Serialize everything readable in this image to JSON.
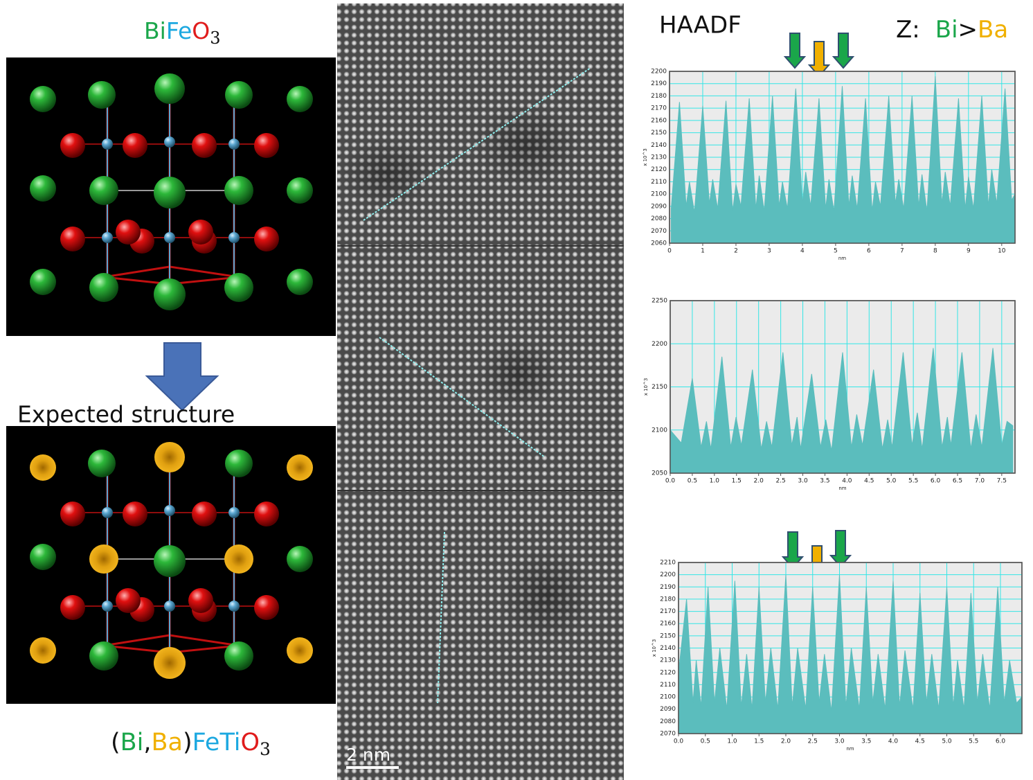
{
  "left": {
    "formula_top": [
      "Bi",
      "Fe",
      "O",
      "3"
    ],
    "caption": "Expected structure",
    "formula_bottom": [
      "(",
      "Bi",
      ",",
      "Ba",
      ")",
      "Fe",
      "Ti",
      "O",
      "3"
    ]
  },
  "image": {
    "scale_bar": "2 nm"
  },
  "right": {
    "title": "HAADF",
    "z_label": "Z:",
    "z_high": "Bi",
    "z_op": ">",
    "z_low": "Ba"
  },
  "chart_data": [
    {
      "type": "area",
      "color": "#5bbdbd",
      "grid": true,
      "grid_color": "#33e6e6",
      "xlabel": "nm",
      "ylabel": "x 10^3",
      "xlim": [
        0,
        10.4
      ],
      "ylim": [
        2060,
        2200
      ],
      "xticks": [
        0,
        1,
        2,
        3,
        4,
        5,
        6,
        7,
        8,
        9,
        10
      ],
      "yticks": [
        2060,
        2070,
        2080,
        2090,
        2100,
        2110,
        2120,
        2130,
        2140,
        2150,
        2160,
        2170,
        2180,
        2190,
        2200
      ],
      "x": [
        0.05,
        0.3,
        0.5,
        0.6,
        0.75,
        1.0,
        1.2,
        1.3,
        1.45,
        1.7,
        1.9,
        2.0,
        2.15,
        2.4,
        2.6,
        2.7,
        2.85,
        3.1,
        3.3,
        3.4,
        3.55,
        3.8,
        4.0,
        4.1,
        4.25,
        4.5,
        4.7,
        4.8,
        4.95,
        5.2,
        5.4,
        5.5,
        5.65,
        5.9,
        6.1,
        6.2,
        6.35,
        6.6,
        6.8,
        6.9,
        7.05,
        7.3,
        7.5,
        7.6,
        7.75,
        8.0,
        8.2,
        8.3,
        8.45,
        8.7,
        8.9,
        9.0,
        9.15,
        9.4,
        9.6,
        9.7,
        9.85,
        10.1,
        10.3,
        10.4
      ],
      "values": [
        2088,
        2175,
        2090,
        2110,
        2085,
        2172,
        2092,
        2112,
        2088,
        2176,
        2086,
        2108,
        2090,
        2178,
        2088,
        2115,
        2086,
        2180,
        2090,
        2110,
        2088,
        2186,
        2092,
        2118,
        2090,
        2178,
        2088,
        2112,
        2086,
        2188,
        2090,
        2115,
        2088,
        2178,
        2086,
        2110,
        2090,
        2180,
        2092,
        2112,
        2088,
        2180,
        2090,
        2116,
        2086,
        2196,
        2092,
        2118,
        2090,
        2178,
        2088,
        2114,
        2088,
        2180,
        2090,
        2120,
        2092,
        2186,
        2095,
        2100
      ]
    },
    {
      "type": "area",
      "color": "#5bbdbd",
      "grid": true,
      "grid_color": "#33e6e6",
      "xlabel": "nm",
      "ylabel": "x 10^3",
      "xlim": [
        0,
        7.8
      ],
      "ylim": [
        2050,
        2250
      ],
      "xticks": [
        {
          "value": 0,
          "label": "0.0"
        },
        0.5,
        {
          "value": 1,
          "label": "1.0"
        },
        1.5,
        {
          "value": 2,
          "label": "2.0"
        },
        2.5,
        {
          "value": 3,
          "label": "3.0"
        },
        3.5,
        {
          "value": 4,
          "label": "4.0"
        },
        4.5,
        {
          "value": 5,
          "label": "5.0"
        },
        5.5,
        {
          "value": 6,
          "label": "6.0"
        },
        6.5,
        {
          "value": 7,
          "label": "7.0"
        },
        7.5
      ],
      "yticks": [
        2050,
        2100,
        2150,
        2200,
        2250
      ],
      "x": [
        0.0,
        0.25,
        0.5,
        0.7,
        0.82,
        0.92,
        1.17,
        1.37,
        1.49,
        1.61,
        1.86,
        2.06,
        2.18,
        2.3,
        2.55,
        2.75,
        2.87,
        2.95,
        3.2,
        3.4,
        3.52,
        3.65,
        3.9,
        4.1,
        4.22,
        4.35,
        4.6,
        4.8,
        4.92,
        5.02,
        5.27,
        5.47,
        5.59,
        5.7,
        5.95,
        6.15,
        6.27,
        6.35,
        6.6,
        6.8,
        6.92,
        7.05,
        7.3,
        7.5,
        7.62,
        7.75
      ],
      "values": [
        2100,
        2085,
        2160,
        2080,
        2110,
        2078,
        2185,
        2080,
        2115,
        2082,
        2170,
        2078,
        2110,
        2080,
        2190,
        2082,
        2115,
        2078,
        2165,
        2080,
        2112,
        2076,
        2190,
        2080,
        2118,
        2082,
        2170,
        2078,
        2112,
        2080,
        2190,
        2082,
        2120,
        2078,
        2195,
        2080,
        2115,
        2082,
        2190,
        2078,
        2118,
        2080,
        2195,
        2082,
        2110,
        2105
      ]
    },
    {
      "type": "area",
      "color": "#5bbdbd",
      "grid": true,
      "grid_color": "#33e6e6",
      "xlabel": "nm",
      "ylabel": "x 10^3",
      "xlim": [
        0,
        6.4
      ],
      "ylim": [
        2070,
        2210
      ],
      "xticks": [
        {
          "value": 0,
          "label": "0.0"
        },
        0.5,
        {
          "value": 1,
          "label": "1.0"
        },
        1.5,
        {
          "value": 2,
          "label": "2.0"
        },
        2.5,
        {
          "value": 3,
          "label": "3.0"
        },
        3.5,
        {
          "value": 4,
          "label": "4.0"
        },
        4.5,
        {
          "value": 5,
          "label": "5.0"
        },
        5.5,
        {
          "value": 6,
          "label": "6.0"
        }
      ],
      "yticks": [
        2070,
        2080,
        2090,
        2100,
        2110,
        2120,
        2130,
        2140,
        2150,
        2160,
        2170,
        2180,
        2190,
        2200,
        2210
      ],
      "x": [
        0.0,
        0.15,
        0.27,
        0.33,
        0.42,
        0.55,
        0.67,
        0.77,
        0.9,
        1.05,
        1.17,
        1.27,
        1.37,
        1.5,
        1.62,
        1.72,
        1.85,
        2.0,
        2.12,
        2.22,
        2.37,
        2.5,
        2.62,
        2.72,
        2.85,
        3.0,
        3.12,
        3.22,
        3.37,
        3.5,
        3.62,
        3.72,
        3.85,
        4.0,
        4.12,
        4.22,
        4.37,
        4.5,
        4.62,
        4.72,
        4.85,
        5.0,
        5.12,
        5.2,
        5.32,
        5.45,
        5.57,
        5.67,
        5.8,
        5.95,
        6.07,
        6.17,
        6.3,
        6.4
      ],
      "values": [
        2120,
        2180,
        2095,
        2130,
        2092,
        2190,
        2095,
        2140,
        2090,
        2195,
        2092,
        2135,
        2090,
        2190,
        2095,
        2140,
        2090,
        2200,
        2092,
        2140,
        2090,
        2190,
        2095,
        2135,
        2088,
        2200,
        2092,
        2140,
        2090,
        2190,
        2095,
        2135,
        2090,
        2195,
        2092,
        2138,
        2090,
        2185,
        2095,
        2135,
        2090,
        2190,
        2092,
        2130,
        2090,
        2185,
        2095,
        2135,
        2090,
        2190,
        2095,
        2130,
        2095,
        2100
      ]
    }
  ]
}
